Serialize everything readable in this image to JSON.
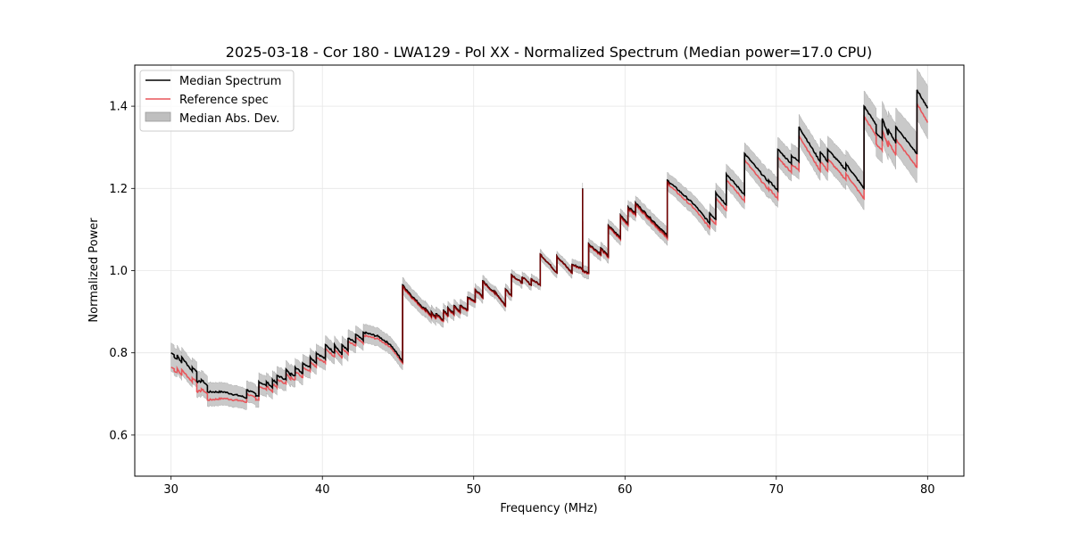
{
  "chart_data": {
    "type": "line",
    "title": "2025-03-18 - Cor 180 - LWA129 - Pol XX - Normalized Spectrum (Median power=17.0 CPU)",
    "xlabel": "Frequency (MHz)",
    "ylabel": "Normalized Power",
    "xlim": [
      27.6,
      82.4
    ],
    "ylim": [
      0.5,
      1.5
    ],
    "xticks": [
      30,
      40,
      50,
      60,
      70,
      80
    ],
    "yticks": [
      0.6,
      0.8,
      1.0,
      1.2,
      1.4
    ],
    "xtick_labels": [
      "30",
      "40",
      "50",
      "60",
      "70",
      "80"
    ],
    "ytick_labels": [
      "0.6",
      "0.8",
      "1.0",
      "1.2",
      "1.4"
    ],
    "grid": true,
    "legend": {
      "placement": "top-left",
      "entries": [
        {
          "label": "Median Spectrum",
          "kind": "line",
          "color": "#000000"
        },
        {
          "label": "Reference spec",
          "kind": "line",
          "color": "#e8555a"
        },
        {
          "label": "Median Abs. Dev.",
          "kind": "band",
          "color": "#bfbfbf"
        }
      ]
    },
    "series": [
      {
        "name": "Median Spectrum",
        "color": "#000000",
        "points": [
          [
            30.0,
            0.8
          ],
          [
            30.2,
            0.795
          ],
          [
            30.2,
            0.79
          ],
          [
            30.4,
            0.785
          ],
          [
            30.4,
            0.795
          ],
          [
            30.7,
            0.775
          ],
          [
            30.7,
            0.79
          ],
          [
            31.2,
            0.765
          ],
          [
            31.2,
            0.765
          ],
          [
            31.4,
            0.755
          ],
          [
            31.4,
            0.765
          ],
          [
            31.7,
            0.755
          ],
          [
            31.7,
            0.73
          ],
          [
            32.0,
            0.73
          ],
          [
            32.0,
            0.735
          ],
          [
            32.4,
            0.72
          ],
          [
            32.4,
            0.705
          ],
          [
            33.5,
            0.705
          ],
          [
            34.0,
            0.7
          ],
          [
            34.6,
            0.695
          ],
          [
            35.0,
            0.69
          ],
          [
            35.0,
            0.71
          ],
          [
            35.6,
            0.7
          ],
          [
            35.6,
            0.695
          ],
          [
            35.8,
            0.695
          ],
          [
            35.8,
            0.73
          ],
          [
            36.3,
            0.72
          ],
          [
            36.3,
            0.73
          ],
          [
            36.7,
            0.715
          ],
          [
            36.7,
            0.735
          ],
          [
            37.0,
            0.725
          ],
          [
            37.0,
            0.745
          ],
          [
            37.6,
            0.735
          ],
          [
            37.6,
            0.76
          ],
          [
            37.9,
            0.745
          ],
          [
            37.9,
            0.75
          ],
          [
            38.2,
            0.745
          ],
          [
            38.2,
            0.765
          ],
          [
            38.7,
            0.75
          ],
          [
            38.7,
            0.775
          ],
          [
            39.2,
            0.765
          ],
          [
            39.2,
            0.79
          ],
          [
            39.6,
            0.775
          ],
          [
            39.6,
            0.8
          ],
          [
            40.2,
            0.785
          ],
          [
            40.2,
            0.82
          ],
          [
            40.8,
            0.8
          ],
          [
            40.8,
            0.82
          ],
          [
            41.3,
            0.795
          ],
          [
            41.3,
            0.82
          ],
          [
            41.7,
            0.805
          ],
          [
            41.7,
            0.835
          ],
          [
            42.2,
            0.825
          ],
          [
            42.2,
            0.845
          ],
          [
            42.7,
            0.83
          ],
          [
            42.7,
            0.85
          ],
          [
            43.7,
            0.84
          ],
          [
            44.5,
            0.82
          ],
          [
            45.3,
            0.78
          ],
          [
            45.3,
            0.965
          ],
          [
            46.0,
            0.935
          ],
          [
            46.8,
            0.905
          ],
          [
            46.8,
            0.91
          ],
          [
            47.2,
            0.89
          ],
          [
            47.2,
            0.9
          ],
          [
            47.5,
            0.885
          ],
          [
            47.5,
            0.895
          ],
          [
            48.0,
            0.88
          ],
          [
            48.0,
            0.905
          ],
          [
            48.3,
            0.89
          ],
          [
            48.3,
            0.91
          ],
          [
            48.7,
            0.895
          ],
          [
            48.7,
            0.915
          ],
          [
            49.1,
            0.9
          ],
          [
            49.1,
            0.915
          ],
          [
            49.6,
            0.905
          ],
          [
            49.6,
            0.935
          ],
          [
            50.1,
            0.925
          ],
          [
            50.1,
            0.955
          ],
          [
            50.6,
            0.935
          ],
          [
            50.6,
            0.975
          ],
          [
            51.4,
            0.945
          ],
          [
            51.4,
            0.95
          ],
          [
            52.1,
            0.915
          ],
          [
            52.1,
            0.955
          ],
          [
            52.5,
            0.94
          ],
          [
            52.5,
            0.99
          ],
          [
            53.2,
            0.97
          ],
          [
            53.2,
            0.985
          ],
          [
            53.8,
            0.965
          ],
          [
            53.8,
            0.98
          ],
          [
            54.4,
            0.965
          ],
          [
            54.4,
            1.04
          ],
          [
            55.5,
            0.995
          ],
          [
            55.5,
            1.035
          ],
          [
            56.5,
            0.995
          ],
          [
            56.5,
            1.015
          ],
          [
            57.2,
            1.005
          ],
          [
            57.2,
            1.2
          ],
          [
            57.2,
            1.0
          ],
          [
            57.6,
            0.995
          ],
          [
            57.6,
            1.065
          ],
          [
            58.4,
            1.04
          ],
          [
            58.4,
            1.055
          ],
          [
            58.9,
            1.035
          ],
          [
            58.9,
            1.11
          ],
          [
            59.7,
            1.08
          ],
          [
            59.7,
            1.135
          ],
          [
            60.2,
            1.115
          ],
          [
            60.2,
            1.155
          ],
          [
            60.7,
            1.14
          ],
          [
            60.7,
            1.165
          ],
          [
            62.8,
            1.085
          ],
          [
            62.8,
            1.22
          ],
          [
            64.6,
            1.16
          ],
          [
            65.6,
            1.115
          ],
          [
            65.6,
            1.14
          ],
          [
            66.0,
            1.125
          ],
          [
            66.0,
            1.19
          ],
          [
            66.7,
            1.16
          ],
          [
            66.7,
            1.235
          ],
          [
            67.9,
            1.185
          ],
          [
            67.9,
            1.285
          ],
          [
            68.7,
            1.25
          ],
          [
            69.5,
            1.215
          ],
          [
            69.5,
            1.22
          ],
          [
            70.1,
            1.195
          ],
          [
            70.1,
            1.295
          ],
          [
            71.0,
            1.26
          ],
          [
            71.0,
            1.28
          ],
          [
            71.5,
            1.265
          ],
          [
            71.5,
            1.35
          ],
          [
            72.9,
            1.265
          ],
          [
            72.9,
            1.29
          ],
          [
            73.4,
            1.265
          ],
          [
            73.4,
            1.295
          ],
          [
            74.6,
            1.245
          ],
          [
            74.6,
            1.26
          ],
          [
            75.8,
            1.2
          ],
          [
            75.8,
            1.4
          ],
          [
            76.6,
            1.355
          ],
          [
            76.6,
            1.335
          ],
          [
            77.0,
            1.32
          ],
          [
            77.0,
            1.37
          ],
          [
            77.4,
            1.33
          ],
          [
            77.4,
            1.345
          ],
          [
            77.9,
            1.31
          ],
          [
            77.9,
            1.35
          ],
          [
            79.3,
            1.285
          ],
          [
            79.3,
            1.44
          ],
          [
            80.0,
            1.395
          ]
        ]
      },
      {
        "name": "Reference spec",
        "color": "#e8555a",
        "offsets_note": "Reference follows the median closely, lower by the listed offset in each band",
        "offsets": [
          [
            30.0,
            -0.035
          ],
          [
            32.4,
            -0.02
          ],
          [
            35.0,
            -0.01
          ],
          [
            40.0,
            -0.01
          ],
          [
            45.3,
            -0.005
          ],
          [
            55.0,
            0.0
          ],
          [
            60.0,
            -0.005
          ],
          [
            65.0,
            -0.01
          ],
          [
            70.0,
            -0.02
          ],
          [
            75.8,
            -0.025
          ],
          [
            80.0,
            -0.035
          ]
        ]
      }
    ],
    "band": {
      "name": "Median Abs. Dev.",
      "color": "#bfbfbf",
      "halfwidth": [
        [
          30.0,
          0.02
        ],
        [
          35.0,
          0.018
        ],
        [
          40.0,
          0.018
        ],
        [
          45.0,
          0.015
        ],
        [
          50.0,
          0.01
        ],
        [
          55.0,
          0.008
        ],
        [
          60.0,
          0.012
        ],
        [
          65.0,
          0.018
        ],
        [
          70.0,
          0.025
        ],
        [
          75.0,
          0.03
        ],
        [
          80.0,
          0.05
        ]
      ]
    }
  }
}
